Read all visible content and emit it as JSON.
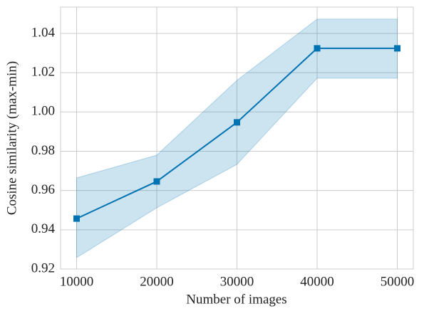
{
  "chart_data": {
    "type": "line",
    "xlabel": "Number of images",
    "ylabel": "Cosine similarity (max-min)",
    "x": [
      10000,
      20000,
      30000,
      40000,
      50000
    ],
    "series": [
      {
        "color": "#0173b2",
        "values": [
          0.9457,
          0.9646,
          0.9947,
          1.0324,
          1.0324
        ],
        "lower": [
          0.9258,
          0.9512,
          0.9733,
          1.0172,
          1.0172
        ],
        "upper": [
          0.9664,
          0.978,
          1.0161,
          1.0473,
          1.0473
        ]
      }
    ],
    "xlim": [
      8000,
      52000
    ],
    "xticks": [
      10000,
      20000,
      30000,
      40000,
      50000
    ],
    "ylim": [
      0.92,
      1.0534
    ],
    "yticks": [
      0.92,
      0.94,
      0.96,
      0.98,
      {
        "value": 1.0,
        "label": "1.00"
      },
      1.02,
      1.04
    ],
    "grid": true
  }
}
